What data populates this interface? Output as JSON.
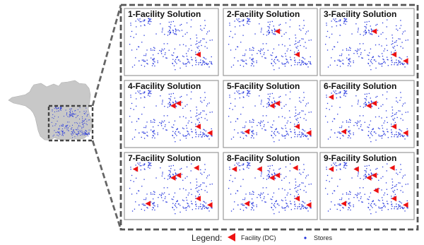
{
  "figure": {
    "panels": [
      {
        "title": "1-Facility Solution",
        "facilities": 1
      },
      {
        "title": "2-Facility Solution",
        "facilities": 2
      },
      {
        "title": "3-Facility Solution",
        "facilities": 3
      },
      {
        "title": "4-Facility Solution",
        "facilities": 4
      },
      {
        "title": "5-Facility Solution",
        "facilities": 5
      },
      {
        "title": "6-Facility Solution",
        "facilities": 6
      },
      {
        "title": "7-Facility Solution",
        "facilities": 7
      },
      {
        "title": "8-Facility Solution",
        "facilities": 8
      },
      {
        "title": "9-Facility Solution",
        "facilities": 9
      }
    ],
    "legend": {
      "title": "Legend:",
      "facility_label": "Facility (DC)",
      "stores_label": "Stores"
    },
    "colors": {
      "facility": "#ee1111",
      "store": "#2233dd",
      "france_map": "#c8c8c8",
      "frame": "#555555",
      "panel_border": "#999999"
    }
  }
}
